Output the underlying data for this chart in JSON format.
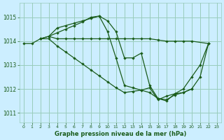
{
  "bg_color": "#cceeff",
  "grid_color": "#99ccbb",
  "line_color": "#1a5c1a",
  "title": "Graphe pression niveau de la mer (hPa)",
  "xlim": [
    -0.5,
    23.5
  ],
  "ylim": [
    1010.6,
    1015.6
  ],
  "yticks": [
    1011,
    1012,
    1013,
    1014,
    1015
  ],
  "xticks": [
    0,
    1,
    2,
    3,
    4,
    5,
    6,
    7,
    8,
    9,
    10,
    11,
    12,
    13,
    14,
    15,
    16,
    17,
    18,
    19,
    20,
    21,
    22,
    23
  ],
  "series": [
    {
      "x": [
        0,
        1,
        2,
        3,
        4,
        5,
        6,
        7,
        8,
        9,
        10,
        11,
        12,
        13,
        14,
        15,
        16,
        17,
        18,
        19,
        20,
        21,
        22
      ],
      "y": [
        1013.9,
        1013.9,
        1014.1,
        1014.2,
        1014.35,
        1014.5,
        1014.65,
        1014.8,
        1015.0,
        1015.05,
        1014.85,
        1014.4,
        1013.3,
        1013.3,
        1013.5,
        1012.15,
        1011.6,
        1011.5,
        1011.8,
        1012.0,
        1012.5,
        1013.0,
        1013.9
      ]
    },
    {
      "x": [
        2,
        3,
        4,
        5,
        6,
        7,
        8,
        9,
        10,
        11,
        12,
        13,
        14,
        15,
        16,
        17,
        18,
        19,
        20,
        21,
        22
      ],
      "y": [
        1014.1,
        1014.2,
        1014.55,
        1014.65,
        1014.75,
        1014.85,
        1014.95,
        1015.05,
        1014.4,
        1013.3,
        1012.15,
        1012.05,
        1011.95,
        1011.85,
        1011.6,
        1011.55,
        1011.75,
        1011.85,
        1012.0,
        1012.5,
        1013.9
      ]
    },
    {
      "x": [
        3,
        4,
        5,
        6,
        7,
        8,
        9,
        10,
        11,
        12,
        13,
        14,
        15,
        16,
        17,
        18,
        19,
        20,
        22
      ],
      "y": [
        1014.2,
        1014.1,
        1014.1,
        1014.1,
        1014.1,
        1014.1,
        1014.1,
        1014.1,
        1014.1,
        1014.1,
        1014.1,
        1014.1,
        1014.1,
        1014.05,
        1014.0,
        1014.0,
        1014.0,
        1014.0,
        1013.9
      ]
    },
    {
      "x": [
        2,
        3,
        4,
        5,
        6,
        7,
        8,
        9,
        10,
        11,
        12,
        13,
        14,
        15,
        16,
        17,
        18,
        19,
        20
      ],
      "y": [
        1014.1,
        1014.1,
        1013.8,
        1013.55,
        1013.3,
        1013.05,
        1012.8,
        1012.55,
        1012.3,
        1012.05,
        1011.85,
        1011.9,
        1011.95,
        1012.05,
        1011.55,
        1011.7,
        1011.8,
        1011.85,
        1012.0
      ]
    }
  ]
}
